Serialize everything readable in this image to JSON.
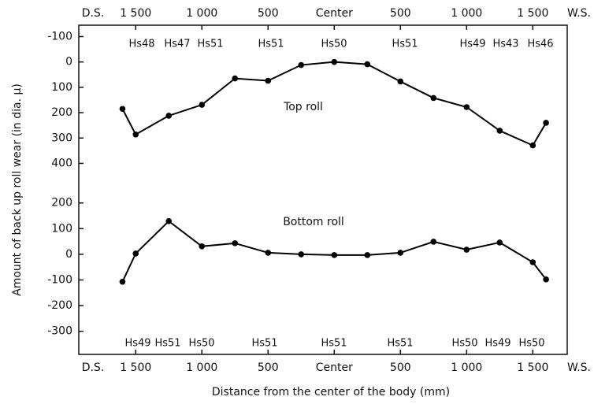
{
  "chart_data": [
    {
      "type": "line",
      "x_ends": [
        "D.S.",
        "W.S."
      ],
      "ylabel": "Amount of back up roll wear  (in dia. μ)",
      "xlim": [
        -1930,
        1760
      ],
      "xticks": [
        {
          "value": -1500,
          "label": "1 500"
        },
        {
          "value": -1000,
          "label": "1 000"
        },
        {
          "value": -500,
          "label": "500"
        },
        {
          "value": 0,
          "label": "Center"
        },
        {
          "value": 500,
          "label": "500"
        },
        {
          "value": 1000,
          "label": "1 000"
        },
        {
          "value": 1500,
          "label": "1 500"
        }
      ],
      "ylim": [
        -145,
        470
      ],
      "y_inverted": true,
      "yticks": [
        -100,
        0,
        100,
        200,
        300,
        400
      ],
      "annotations": [
        "Top roll"
      ],
      "hardness": [
        "Hs48",
        "Hs47",
        "Hs51",
        "Hs51",
        "Hs50",
        "Hs51",
        "Hs49",
        "Hs43",
        "Hs46"
      ],
      "series": [
        {
          "name": "Top roll",
          "color": "#000000",
          "x": [
            -1600,
            -1500,
            -1250,
            -1000,
            -750,
            -500,
            -250,
            0,
            250,
            500,
            750,
            1000,
            1250,
            1500,
            1600
          ],
          "values": [
            185,
            286,
            212,
            169,
            65,
            74,
            12,
            0,
            9,
            77,
            142,
            178,
            271,
            329,
            240
          ]
        }
      ]
    },
    {
      "type": "line",
      "x_ends": [
        "D.S.",
        "W.S."
      ],
      "xlabel": "Distance from the center of the body  (mm)",
      "xlim": [
        -1930,
        1760
      ],
      "xticks": [
        {
          "value": -1500,
          "label": "1 500"
        },
        {
          "value": -1000,
          "label": "1 000"
        },
        {
          "value": -500,
          "label": "500"
        },
        {
          "value": 0,
          "label": "Center"
        },
        {
          "value": 500,
          "label": "500"
        },
        {
          "value": 1000,
          "label": "1 000"
        },
        {
          "value": 1500,
          "label": "1 500"
        }
      ],
      "ylim": [
        -390,
        285
      ],
      "y_inverted": false,
      "yticks": [
        200,
        100,
        0,
        -100,
        -200,
        -300
      ],
      "annotations": [
        "Bottom roll"
      ],
      "hardness": [
        "Hs49",
        "Hs51",
        "Hs50",
        "Hs51",
        "Hs51",
        "Hs51",
        "Hs50",
        "Hs49",
        "Hs50"
      ],
      "series": [
        {
          "name": "Bottom roll",
          "color": "#000000",
          "x": [
            -1600,
            -1500,
            -1250,
            -1000,
            -750,
            -500,
            -250,
            0,
            250,
            500,
            750,
            1000,
            1250,
            1500,
            1600
          ],
          "values": [
            -107,
            3,
            129,
            31,
            43,
            6,
            0,
            -3,
            -3,
            6,
            49,
            18,
            46,
            -31,
            -98
          ]
        }
      ]
    }
  ]
}
